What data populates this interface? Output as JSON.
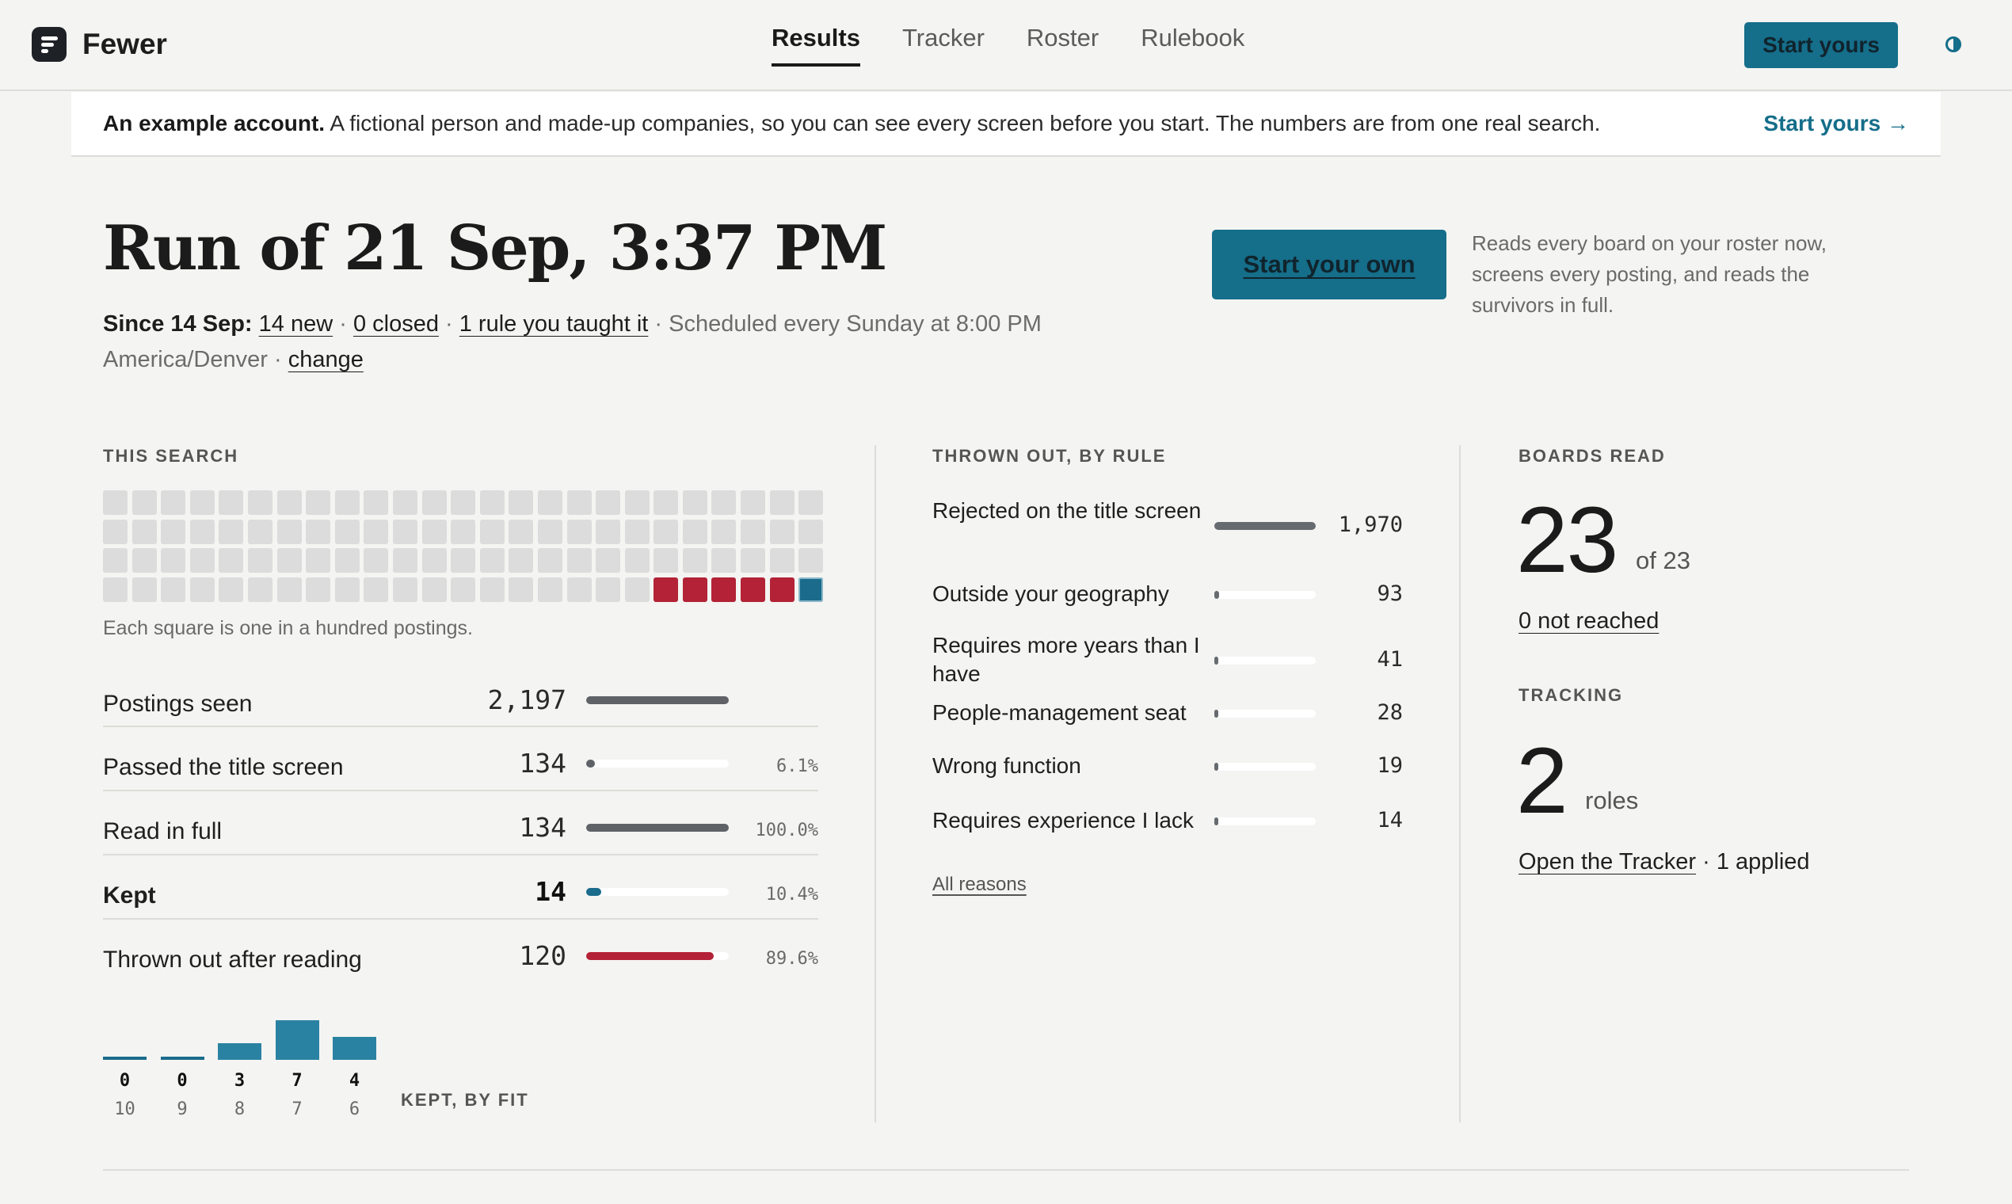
{
  "header": {
    "brand": "Fewer",
    "nav": [
      {
        "label": "Results",
        "active": true
      },
      {
        "label": "Tracker",
        "active": false
      },
      {
        "label": "Roster",
        "active": false
      },
      {
        "label": "Rulebook",
        "active": false
      }
    ],
    "cta_label": "Start yours",
    "theme_icon": "contrast-icon"
  },
  "banner": {
    "lead": "An example account.",
    "text": " A fictional person and made-up companies, so you can see every screen before you start. The numbers are from one real search.",
    "link": "Start yours →"
  },
  "run": {
    "title": "Run of 21 Sep, 3:37 PM",
    "since_label": "Since 14 Sep:",
    "new_link": "14 new",
    "closed_link": "0 closed",
    "rule_link": "1 rule you taught it",
    "schedule": "Scheduled every Sunday at 8:00 PM",
    "timezone": "America/Denver",
    "change_link": "change",
    "start_own_label": "Start your own",
    "start_own_desc": "Reads every board on your roster now, screens every posting, and reads the survivors in full."
  },
  "this_search": {
    "label": "THIS SEARCH",
    "waffle_total": 100,
    "waffle_red": 5,
    "waffle_blue": 1,
    "note": "Each square is one in a hundred postings.",
    "rows": [
      {
        "label": "Postings seen",
        "value": "2,197",
        "fraction": 1.0,
        "pct": "",
        "color": "#5f6368",
        "bold": false
      },
      {
        "label": "Passed the title screen",
        "value": "134",
        "fraction": 0.061,
        "pct": "6.1%",
        "color": "#5f6368",
        "bold": false
      },
      {
        "label": "Read in full",
        "value": "134",
        "fraction": 1.0,
        "pct": "100.0%",
        "color": "#5f6368",
        "bold": false
      },
      {
        "label": "Kept",
        "value": "14",
        "fraction": 0.104,
        "pct": "10.4%",
        "color": "#1a6b8c",
        "bold": true
      },
      {
        "label": "Thrown out after reading",
        "value": "120",
        "fraction": 0.896,
        "pct": "89.6%",
        "color": "#b32236",
        "bold": false
      }
    ]
  },
  "chart_data": {
    "type": "bar",
    "title": "KEPT, BY FIT",
    "categories": [
      "10",
      "9",
      "8",
      "7",
      "6"
    ],
    "values": [
      0,
      0,
      3,
      7,
      4
    ],
    "ylim": [
      0,
      7
    ]
  },
  "thrown_out": {
    "label": "THROWN OUT, BY RULE",
    "rules": [
      {
        "label": "Rejected on the title screen",
        "value": "1,970",
        "fraction": 1.0
      },
      {
        "label": "Outside your geography",
        "value": "93",
        "fraction": 0.047
      },
      {
        "label": "Requires more years than I have",
        "value": "41",
        "fraction": 0.021
      },
      {
        "label": "People-management seat",
        "value": "28",
        "fraction": 0.014
      },
      {
        "label": "Wrong function",
        "value": "19",
        "fraction": 0.01
      },
      {
        "label": "Requires experience I lack",
        "value": "14",
        "fraction": 0.007
      }
    ],
    "all_reasons": "All reasons"
  },
  "boards": {
    "label": "BOARDS READ",
    "value": "23",
    "suffix": "of 23",
    "not_reached": "0 not reached"
  },
  "tracking": {
    "label": "TRACKING",
    "value": "2",
    "suffix": "roles",
    "open_link": "Open the Tracker",
    "applied": " · 1 applied"
  }
}
